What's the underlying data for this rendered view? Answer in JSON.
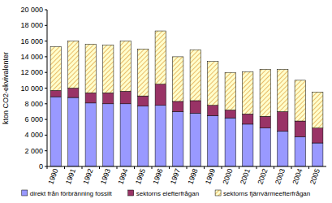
{
  "chart_data": {
    "type": "bar",
    "stacked": true,
    "grid": false,
    "legend": "bottom",
    "y_label": "kton CO2-ekvivalenter",
    "categories": [
      "1990",
      "1991",
      "1992",
      "1993",
      "1994",
      "1995",
      "1996",
      "1997",
      "1998",
      "1999",
      "2000",
      "2001",
      "2002",
      "2003",
      "2004",
      "2005"
    ],
    "series": [
      {
        "name": "direkt från förbränning fossilt",
        "color": "#9999ff",
        "values": [
          8900,
          8800,
          8100,
          8000,
          8000,
          7700,
          7800,
          7000,
          6800,
          6500,
          6200,
          5400,
          4900,
          4500,
          3800,
          3000
        ]
      },
      {
        "name": "sektorns elefterfrågan",
        "color": "#993366",
        "values": [
          800,
          1200,
          1300,
          1400,
          1600,
          1300,
          2700,
          1300,
          1600,
          1300,
          1000,
          1300,
          1500,
          2500,
          2000,
          1900
        ]
      },
      {
        "name": "sektorns fjärrvärmeefterfrågan",
        "color": "#ffffcc",
        "values": [
          5600,
          6000,
          6200,
          6100,
          6400,
          6000,
          6800,
          5700,
          6500,
          5600,
          4800,
          5400,
          6000,
          5400,
          5200,
          4600
        ]
      }
    ],
    "ylim": [
      0,
      20000
    ],
    "yticks": [
      0,
      {
        "value": 2000,
        "label": "2 000"
      },
      {
        "value": 4000,
        "label": "4 000"
      },
      {
        "value": 6000,
        "label": "6 000"
      },
      {
        "value": 8000,
        "label": "8 000"
      },
      {
        "value": 10000,
        "label": "10 000"
      },
      {
        "value": 12000,
        "label": "12 000"
      },
      {
        "value": 14000,
        "label": "14 000"
      },
      {
        "value": 16000,
        "label": "16 000"
      },
      {
        "value": 18000,
        "label": "18 000"
      },
      {
        "value": 20000,
        "label": "20 000"
      }
    ]
  }
}
